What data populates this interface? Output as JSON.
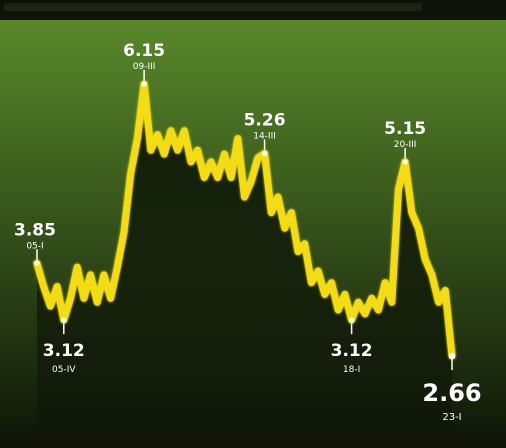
{
  "colors": {
    "background_top": "#5c8e2c",
    "background_bottom": "#0e1508",
    "line": "#f3dc12",
    "area": "#0d1607",
    "label": "#ffffff"
  },
  "chart_data": {
    "type": "line",
    "title": "",
    "xlabel": "",
    "ylabel": "",
    "grid": false,
    "legend": "none",
    "ylim": [
      2.4,
      6.4
    ],
    "series": [
      {
        "values": [
          3.85,
          3.55,
          3.3,
          3.55,
          3.12,
          3.4,
          3.8,
          3.4,
          3.7,
          3.35,
          3.7,
          3.4,
          3.8,
          4.25,
          5.0,
          5.45,
          6.15,
          5.3,
          5.5,
          5.25,
          5.55,
          5.3,
          5.55,
          5.15,
          5.3,
          4.95,
          5.15,
          4.95,
          5.25,
          4.95,
          5.45,
          4.7,
          4.9,
          5.2,
          5.26,
          4.5,
          4.7,
          4.3,
          4.5,
          4.0,
          4.1,
          3.6,
          3.75,
          3.45,
          3.6,
          3.25,
          3.45,
          3.12,
          3.35,
          3.2,
          3.4,
          3.25,
          3.6,
          3.35,
          4.8,
          5.15,
          4.5,
          4.3,
          3.9,
          3.7,
          3.35,
          3.5,
          2.66
        ]
      }
    ],
    "annotations": [
      {
        "index": 0,
        "value": "3.85",
        "date": "05-I",
        "position": "above"
      },
      {
        "index": 4,
        "value": "3.12",
        "date": "05-IV",
        "position": "below"
      },
      {
        "index": 16,
        "value": "6.15",
        "date": "09-III",
        "position": "above"
      },
      {
        "index": 34,
        "value": "5.26",
        "date": "14-III",
        "position": "above"
      },
      {
        "index": 47,
        "value": "3.12",
        "date": "18-I",
        "position": "below"
      },
      {
        "index": 55,
        "value": "5.15",
        "date": "20-III",
        "position": "above"
      },
      {
        "index": 62,
        "value": "2.66",
        "date": "23-I",
        "position": "below",
        "emphasis": true
      }
    ]
  }
}
